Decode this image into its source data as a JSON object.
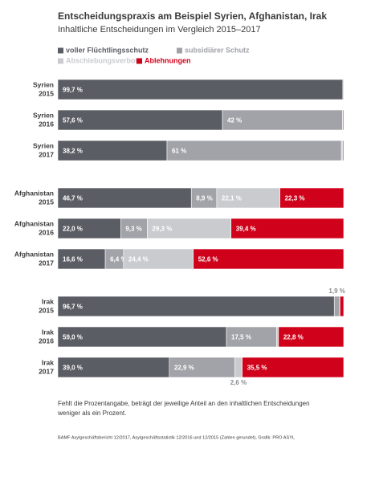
{
  "chart_data": {
    "type": "stacked-bar",
    "title": "Entscheidungspraxis am Beispiel Syrien, Afghanistan, Irak",
    "subtitle": "Inhaltliche Entscheidungen im Vergleich 2015–2017",
    "categories": [
      [
        "Syrien",
        "2015"
      ],
      [
        "Syrien",
        "2016"
      ],
      [
        "Syrien",
        "2017"
      ],
      [
        "Afghanistan",
        "2015"
      ],
      [
        "Afghanistan",
        "2016"
      ],
      [
        "Afghanistan",
        "2017"
      ],
      [
        "Irak",
        "2015"
      ],
      [
        "Irak",
        "2016"
      ],
      [
        "Irak",
        "2017"
      ]
    ],
    "series": [
      {
        "name": "voller Flüchtlingsschutz",
        "color": "#5b5d64",
        "values": [
          99.7,
          57.6,
          38.2,
          46.7,
          22.0,
          16.6,
          96.7,
          59.0,
          39.0
        ],
        "value_labels": [
          "99,7 %",
          "57,6 %",
          "38,2 %",
          "46,7 %",
          "22,0 %",
          "16,6 %",
          "96,7 %",
          "59,0 %",
          "39,0 %"
        ]
      },
      {
        "name": "subsidiärer Schutz",
        "color": "#a1a3a8",
        "values": [
          0.1,
          42,
          61,
          8.9,
          9.3,
          6.4,
          1.9,
          17.5,
          22.9
        ],
        "value_labels": [
          null,
          "42 %",
          "61 %",
          "8,9 %",
          "9,3 %",
          "6,4 %",
          "1,9 %",
          "17,5 %",
          "22,9 %"
        ]
      },
      {
        "name": "Abschiebungsverbot",
        "color": "#c9cbcf",
        "values": [
          0,
          0.1,
          0.5,
          22.1,
          29.3,
          24.4,
          0.1,
          0.7,
          2.6
        ],
        "value_labels": [
          null,
          null,
          null,
          "22,1 %",
          "29,3 %",
          "24,4 %",
          null,
          null,
          "2,6 %"
        ]
      },
      {
        "name": "Ablehnungen",
        "color": "#d0021b",
        "values": [
          0.2,
          0.3,
          0.3,
          22.3,
          39.4,
          52.6,
          1.3,
          22.8,
          35.5
        ],
        "value_labels": [
          null,
          null,
          null,
          "22,3 %",
          "39,4 %",
          "52,6 %",
          null,
          "22,8 %",
          "35,5 %"
        ]
      }
    ],
    "note": [
      "Fehlt die Prozentangabe, beträgt der jeweilige Anteil an den inhaltlichen Entscheidungen",
      "weniger als ein Prozent."
    ],
    "source": "BAMF Asylgeschäftsbericht 12/2017, Asylgeschäftsstatistik 12/2016 und 12/2015 (Zahlen gerundet), Grafik: PRO ASYL"
  }
}
